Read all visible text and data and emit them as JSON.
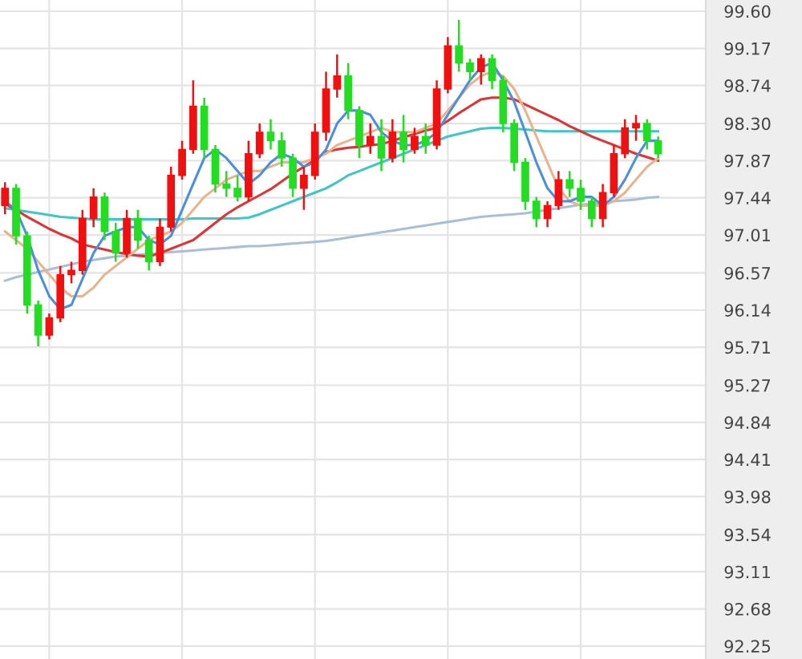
{
  "chart_data": {
    "type": "candlestick",
    "categories": [
      null,
      null,
      null,
      null,
      null,
      null,
      null,
      null,
      null,
      null,
      null,
      null,
      null,
      null,
      null,
      null,
      null,
      null,
      null,
      null,
      null,
      null,
      null,
      null,
      null,
      null,
      null,
      null,
      null,
      null,
      null,
      null,
      null,
      null,
      null,
      null,
      null,
      null,
      null,
      null,
      null,
      null,
      null,
      null,
      null,
      null,
      null,
      null,
      null,
      null,
      null,
      null,
      null,
      null,
      null,
      null,
      null,
      null,
      null,
      null
    ],
    "ohlc": [
      [
        97.35,
        97.62,
        97.25,
        97.55
      ],
      [
        97.55,
        97.6,
        96.9,
        97.0
      ],
      [
        97.0,
        97.05,
        96.1,
        96.2
      ],
      [
        96.2,
        96.25,
        95.72,
        95.85
      ],
      [
        95.85,
        96.1,
        95.8,
        96.05
      ],
      [
        96.05,
        96.65,
        96.0,
        96.55
      ],
      [
        96.55,
        96.7,
        96.45,
        96.6
      ],
      [
        96.6,
        97.3,
        96.55,
        97.2
      ],
      [
        97.2,
        97.55,
        97.1,
        97.45
      ],
      [
        97.45,
        97.5,
        96.95,
        97.05
      ],
      [
        97.05,
        97.15,
        96.7,
        96.8
      ],
      [
        96.8,
        97.3,
        96.75,
        97.2
      ],
      [
        97.2,
        97.3,
        96.85,
        96.95
      ],
      [
        96.95,
        97.0,
        96.6,
        96.7
      ],
      [
        96.7,
        97.2,
        96.65,
        97.1
      ],
      [
        97.1,
        97.8,
        97.05,
        97.7
      ],
      [
        97.7,
        98.1,
        97.65,
        98.0
      ],
      [
        98.0,
        98.8,
        97.95,
        98.5
      ],
      [
        98.5,
        98.6,
        97.9,
        98.0
      ],
      [
        98.0,
        98.05,
        97.5,
        97.6
      ],
      [
        97.6,
        97.75,
        97.45,
        97.55
      ],
      [
        97.55,
        97.7,
        97.4,
        97.45
      ],
      [
        97.45,
        98.1,
        97.4,
        97.95
      ],
      [
        97.95,
        98.3,
        97.9,
        98.2
      ],
      [
        98.2,
        98.35,
        98.0,
        98.1
      ],
      [
        98.1,
        98.2,
        97.8,
        97.9
      ],
      [
        97.9,
        97.95,
        97.45,
        97.55
      ],
      [
        97.55,
        97.8,
        97.3,
        97.7
      ],
      [
        97.7,
        98.3,
        97.65,
        98.2
      ],
      [
        98.2,
        98.9,
        98.1,
        98.7
      ],
      [
        98.7,
        99.1,
        98.6,
        98.85
      ],
      [
        98.85,
        99.0,
        98.35,
        98.45
      ],
      [
        98.45,
        98.5,
        97.9,
        98.05
      ],
      [
        98.05,
        98.3,
        97.95,
        98.15
      ],
      [
        98.15,
        98.35,
        97.75,
        97.9
      ],
      [
        97.9,
        98.35,
        97.85,
        98.2
      ],
      [
        98.2,
        98.4,
        97.85,
        98.0
      ],
      [
        98.0,
        98.25,
        97.95,
        98.15
      ],
      [
        98.15,
        98.3,
        97.95,
        98.05
      ],
      [
        98.05,
        98.8,
        98.0,
        98.7
      ],
      [
        98.7,
        99.3,
        98.65,
        99.2
      ],
      [
        99.2,
        99.5,
        98.9,
        99.0
      ],
      [
        99.0,
        99.05,
        98.8,
        98.9
      ],
      [
        98.9,
        99.1,
        98.75,
        99.05
      ],
      [
        99.05,
        99.1,
        98.7,
        98.8
      ],
      [
        98.8,
        98.85,
        98.2,
        98.3
      ],
      [
        98.3,
        98.35,
        97.75,
        97.85
      ],
      [
        97.85,
        97.9,
        97.3,
        97.4
      ],
      [
        97.4,
        97.45,
        97.1,
        97.2
      ],
      [
        97.2,
        97.4,
        97.1,
        97.35
      ],
      [
        97.35,
        97.75,
        97.3,
        97.65
      ],
      [
        97.65,
        97.75,
        97.45,
        97.55
      ],
      [
        97.55,
        97.65,
        97.3,
        97.4
      ],
      [
        97.4,
        97.45,
        97.1,
        97.2
      ],
      [
        97.2,
        97.6,
        97.1,
        97.5
      ],
      [
        97.5,
        98.05,
        97.45,
        97.95
      ],
      [
        97.95,
        98.35,
        97.9,
        98.25
      ],
      [
        98.25,
        98.4,
        98.1,
        98.3
      ],
      [
        98.3,
        98.35,
        98.0,
        98.1
      ],
      [
        98.1,
        98.15,
        97.9,
        97.95
      ]
    ],
    "colors": [
      "#f01010",
      "#22dd22",
      "#22dd22",
      "#22dd22",
      "#f01010",
      "#f01010",
      "#f01010",
      "#f01010",
      "#f01010",
      "#22dd22",
      "#22dd22",
      "#f01010",
      "#22dd22",
      "#22dd22",
      "#f01010",
      "#f01010",
      "#f01010",
      "#f01010",
      "#22dd22",
      "#22dd22",
      "#22dd22",
      "#22dd22",
      "#f01010",
      "#f01010",
      "#22dd22",
      "#22dd22",
      "#22dd22",
      "#f01010",
      "#f01010",
      "#f01010",
      "#f01010",
      "#22dd22",
      "#22dd22",
      "#f01010",
      "#22dd22",
      "#f01010",
      "#22dd22",
      "#f01010",
      "#22dd22",
      "#f01010",
      "#f01010",
      "#22dd22",
      "#22dd22",
      "#f01010",
      "#22dd22",
      "#22dd22",
      "#22dd22",
      "#22dd22",
      "#22dd22",
      "#f01010",
      "#f01010",
      "#22dd22",
      "#22dd22",
      "#22dd22",
      "#f01010",
      "#f01010",
      "#f01010",
      "#f01010",
      "#22dd22",
      "#22dd22"
    ],
    "series": [
      {
        "type": "line",
        "color": "#a9bed8",
        "values": [
          96.48,
          96.52,
          96.55,
          96.58,
          96.61,
          96.64,
          96.67,
          96.7,
          96.72,
          96.74,
          96.76,
          96.77,
          96.78,
          96.79,
          96.8,
          96.81,
          96.82,
          96.83,
          96.84,
          96.85,
          96.86,
          96.87,
          96.88,
          96.88,
          96.89,
          96.9,
          96.91,
          96.92,
          96.93,
          96.94,
          96.96,
          96.98,
          97.0,
          97.02,
          97.04,
          97.06,
          97.08,
          97.1,
          97.12,
          97.14,
          97.16,
          97.18,
          97.2,
          97.22,
          97.23,
          97.24,
          97.25,
          97.26,
          97.28,
          97.3,
          97.32,
          97.34,
          97.36,
          97.37,
          97.38,
          97.4,
          97.41,
          97.42,
          97.44,
          97.45
        ]
      },
      {
        "type": "line",
        "color": "#3fc6c6",
        "values": [
          97.32,
          97.3,
          97.28,
          97.26,
          97.24,
          97.22,
          97.21,
          97.2,
          97.19,
          97.19,
          97.19,
          97.19,
          97.19,
          97.19,
          97.19,
          97.19,
          97.19,
          97.2,
          97.2,
          97.2,
          97.2,
          97.2,
          97.21,
          97.25,
          97.3,
          97.35,
          97.4,
          97.45,
          97.5,
          97.55,
          97.62,
          97.7,
          97.75,
          97.8,
          97.85,
          97.9,
          97.95,
          98.0,
          98.05,
          98.1,
          98.15,
          98.18,
          98.21,
          98.24,
          98.25,
          98.25,
          98.24,
          98.23,
          98.22,
          98.21,
          98.21,
          98.21,
          98.21,
          98.21,
          98.21,
          98.21,
          98.21,
          98.21,
          98.21,
          98.21
        ]
      },
      {
        "type": "line",
        "color": "#e03434",
        "values": [
          97.37,
          97.3,
          97.22,
          97.15,
          97.08,
          97.02,
          96.97,
          96.9,
          96.87,
          96.84,
          96.81,
          96.79,
          96.77,
          96.76,
          96.8,
          96.85,
          96.9,
          96.95,
          97.05,
          97.15,
          97.25,
          97.33,
          97.4,
          97.47,
          97.54,
          97.63,
          97.72,
          97.8,
          97.88,
          97.97,
          98.0,
          98.02,
          98.03,
          98.05,
          98.06,
          98.1,
          98.14,
          98.18,
          98.22,
          98.25,
          98.33,
          98.42,
          98.5,
          98.58,
          98.6,
          98.6,
          98.58,
          98.52,
          98.46,
          98.4,
          98.34,
          98.27,
          98.21,
          98.15,
          98.1,
          98.05,
          98.0,
          97.95,
          97.91,
          97.87
        ]
      },
      {
        "type": "line",
        "color": "#e8b48e",
        "values": [
          97.05,
          96.95,
          96.85,
          96.7,
          96.55,
          96.4,
          96.3,
          96.3,
          96.4,
          96.55,
          96.65,
          96.75,
          96.85,
          96.95,
          97.0,
          97.05,
          97.15,
          97.3,
          97.45,
          97.55,
          97.65,
          97.7,
          97.75,
          97.75,
          97.8,
          97.85,
          97.85,
          97.85,
          97.9,
          97.95,
          98.05,
          98.1,
          98.15,
          98.2,
          98.25,
          98.2,
          98.2,
          98.2,
          98.25,
          98.3,
          98.45,
          98.6,
          98.75,
          98.85,
          98.9,
          98.85,
          98.7,
          98.45,
          98.15,
          97.85,
          97.55,
          97.4,
          97.35,
          97.35,
          97.35,
          97.4,
          97.5,
          97.65,
          97.8,
          97.9
        ]
      },
      {
        "type": "line",
        "color": "#4a8fe0",
        "values": [
          97.4,
          97.3,
          97.0,
          96.6,
          96.3,
          96.15,
          96.2,
          96.5,
          96.8,
          97.0,
          97.05,
          97.1,
          97.1,
          96.95,
          96.9,
          97.0,
          97.3,
          97.6,
          97.9,
          98.0,
          97.9,
          97.75,
          97.6,
          97.7,
          97.85,
          97.95,
          97.9,
          97.8,
          97.85,
          98.0,
          98.3,
          98.45,
          98.45,
          98.4,
          98.2,
          98.1,
          98.05,
          98.05,
          98.1,
          98.2,
          98.4,
          98.6,
          98.8,
          98.95,
          99.0,
          98.8,
          98.55,
          98.2,
          97.85,
          97.55,
          97.4,
          97.4,
          97.45,
          97.45,
          97.35,
          97.45,
          97.65,
          97.9,
          98.1,
          98.1
        ]
      }
    ],
    "ylim": [
      92.1,
      99.73
    ],
    "yticks": [
      {
        "value": 99.6,
        "label": "99.60"
      },
      99.17,
      98.74,
      {
        "value": 98.3,
        "label": "98.30"
      },
      97.87,
      97.44,
      97.01,
      96.57,
      96.14,
      95.71,
      95.27,
      94.84,
      94.41,
      93.98,
      93.54,
      93.11,
      92.68,
      92.25
    ],
    "tick_labels": "y",
    "grid": true
  }
}
